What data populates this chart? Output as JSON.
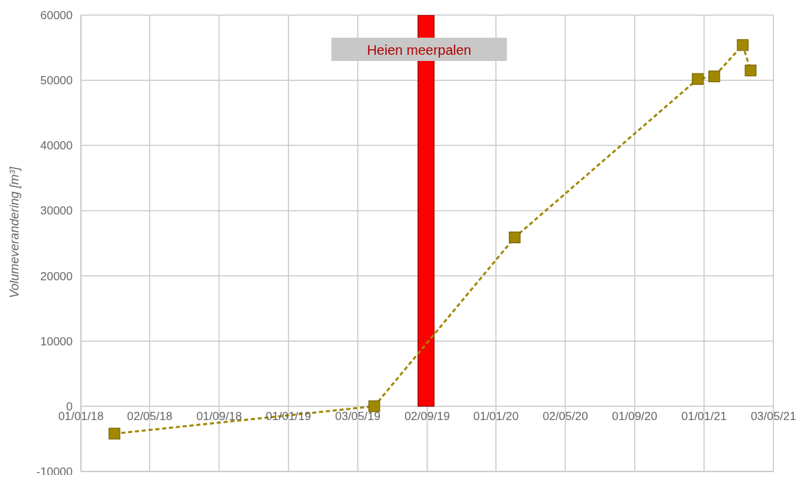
{
  "chart_data": {
    "type": "line",
    "ylabel": "Volumeverandering [m³]",
    "x": [
      "2018-03-01",
      "2019-06-01",
      "2020-02-03",
      "2020-12-21",
      "2021-01-19",
      "2021-03-10",
      "2021-03-24"
    ],
    "series": [
      {
        "color": "#a08800",
        "values": [
          -4200,
          0,
          25900,
          50200,
          50600,
          55400,
          51500
        ]
      }
    ],
    "xlim": [
      "2018-01-01",
      "2021-05-03"
    ],
    "xticks": [
      {
        "value": "2018-01-01",
        "label": "01/01/18"
      },
      {
        "value": "2018-05-02",
        "label": "02/05/18"
      },
      {
        "value": "2018-09-01",
        "label": "01/09/18"
      },
      {
        "value": "2019-01-01",
        "label": "01/01/19"
      },
      {
        "value": "2019-05-03",
        "label": "03/05/19"
      },
      {
        "value": "2019-09-02",
        "label": "02/09/19"
      },
      {
        "value": "2020-01-01",
        "label": "01/01/20"
      },
      {
        "value": "2020-05-02",
        "label": "02/05/20"
      },
      {
        "value": "2020-09-01",
        "label": "01/09/20"
      },
      {
        "value": "2021-01-01",
        "label": "01/01/21"
      },
      {
        "value": "2021-05-03",
        "label": "03/05/21"
      }
    ],
    "ylim": [
      -10000,
      60000
    ],
    "yticks": [
      -10000,
      0,
      10000,
      20000,
      30000,
      40000,
      50000,
      60000
    ],
    "bands": [
      {
        "axis": "x",
        "from": "2019-08-17",
        "to": "2019-09-14",
        "label": "Heien meerpalen",
        "color": "#ff0000"
      }
    ],
    "grid": true,
    "marker": "square",
    "line_style": "dashed"
  }
}
